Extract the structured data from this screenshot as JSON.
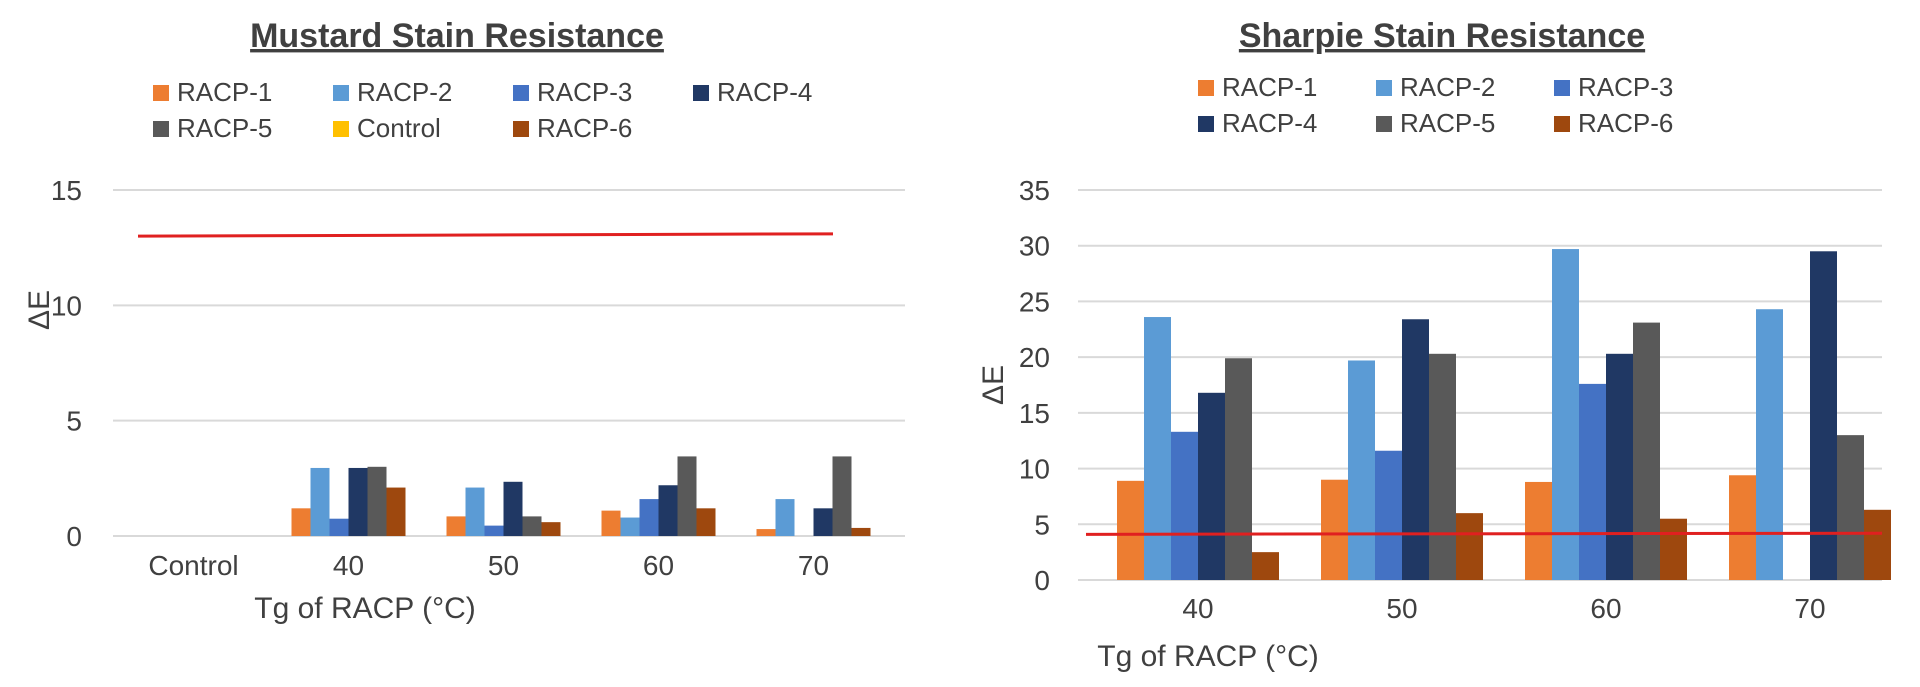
{
  "chart_data": [
    {
      "type": "bar",
      "title": "Mustard Stain Resistance",
      "xlabel": "Tg of RACP (°C)",
      "ylabel": "ΔE",
      "ylim": [
        0,
        15
      ],
      "yticks": [
        "0",
        "5",
        "10",
        "15"
      ],
      "grid": true,
      "legend_position": "top",
      "categories": [
        "Control",
        "40",
        "50",
        "60",
        "70"
      ],
      "series": [
        {
          "name": "RACP-1",
          "color": "#ED7D31",
          "values": [
            null,
            1.2,
            0.85,
            1.1,
            0.3
          ]
        },
        {
          "name": "RACP-2",
          "color": "#5B9BD5",
          "values": [
            null,
            2.95,
            2.1,
            0.8,
            1.6
          ]
        },
        {
          "name": "RACP-3",
          "color": "#4472C4",
          "values": [
            null,
            0.75,
            0.45,
            1.6,
            null
          ]
        },
        {
          "name": "RACP-4",
          "color": "#203864",
          "values": [
            null,
            2.95,
            2.35,
            2.2,
            1.2
          ]
        },
        {
          "name": "RACP-5",
          "color": "#595959",
          "values": [
            null,
            3.0,
            0.85,
            3.45,
            3.45
          ]
        },
        {
          "name": "Control",
          "color": "#FFC000",
          "values": [
            0,
            null,
            null,
            null,
            null
          ]
        },
        {
          "name": "RACP-6",
          "color": "#9E480E",
          "values": [
            null,
            2.1,
            0.6,
            1.2,
            0.35
          ]
        }
      ],
      "reference_line": {
        "color": "#E02020",
        "y_start": 13.0,
        "y_end": 13.1
      }
    },
    {
      "type": "bar",
      "title": "Sharpie Stain Resistance",
      "xlabel": "Tg of RACP (°C)",
      "ylabel": "ΔE",
      "ylim": [
        0,
        35
      ],
      "yticks": [
        "0",
        "5",
        "10",
        "15",
        "20",
        "25",
        "30",
        "35"
      ],
      "grid": true,
      "legend_position": "top",
      "categories": [
        "40",
        "50",
        "60",
        "70"
      ],
      "series": [
        {
          "name": "RACP-1",
          "color": "#ED7D31",
          "values": [
            8.9,
            9.0,
            8.8,
            9.4
          ]
        },
        {
          "name": "RACP-2",
          "color": "#5B9BD5",
          "values": [
            23.6,
            19.7,
            29.7,
            24.3
          ]
        },
        {
          "name": "RACP-3",
          "color": "#4472C4",
          "values": [
            13.3,
            11.6,
            17.6,
            null
          ]
        },
        {
          "name": "RACP-4",
          "color": "#203864",
          "values": [
            16.8,
            23.4,
            20.3,
            29.5
          ]
        },
        {
          "name": "RACP-5",
          "color": "#595959",
          "values": [
            19.9,
            20.3,
            23.1,
            13.0
          ]
        },
        {
          "name": "RACP-6",
          "color": "#9E480E",
          "values": [
            2.5,
            6.0,
            5.5,
            6.3
          ]
        }
      ],
      "reference_line": {
        "color": "#E02020",
        "y_start": 4.1,
        "y_end": 4.2
      }
    }
  ]
}
